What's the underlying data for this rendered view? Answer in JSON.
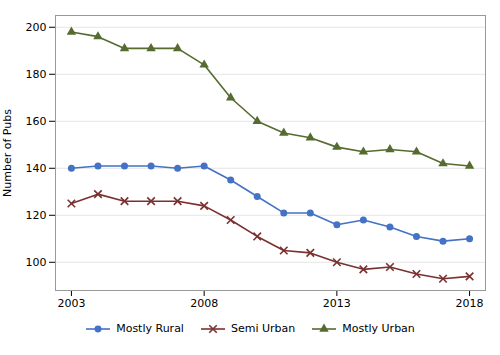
{
  "chart_data": {
    "type": "line",
    "x": [
      2003,
      2004,
      2005,
      2006,
      2007,
      2008,
      2009,
      2010,
      2011,
      2012,
      2013,
      2014,
      2015,
      2016,
      2017,
      2018
    ],
    "series": [
      {
        "name": "Mostly Rural",
        "color": "#4472C4",
        "marker": "circle",
        "values": [
          140,
          141,
          141,
          141,
          140,
          141,
          135,
          128,
          121,
          121,
          116,
          118,
          115,
          111,
          109,
          110
        ]
      },
      {
        "name": "Semi Urban",
        "color": "#7B3030",
        "marker": "x",
        "values": [
          125,
          129,
          126,
          126,
          126,
          124,
          118,
          111,
          105,
          104,
          100,
          97,
          98,
          95,
          93,
          94
        ]
      },
      {
        "name": "Mostly Urban",
        "color": "#556B2F",
        "marker": "triangle",
        "values": [
          198,
          196,
          191,
          191,
          191,
          184,
          170,
          160,
          155,
          153,
          149,
          147,
          148,
          147,
          142,
          141
        ]
      }
    ],
    "ylabel": "Number of Pubs",
    "xlim": [
      2002.4,
      2018.6
    ],
    "xticks": [
      2003,
      2008,
      2013,
      2018
    ],
    "ylim": [
      88,
      205
    ],
    "yticks": [
      100,
      120,
      140,
      160,
      180,
      200
    ],
    "grid": true,
    "legend": "bottom"
  }
}
